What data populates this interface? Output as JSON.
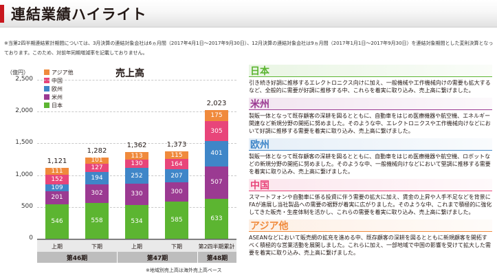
{
  "page": {
    "title": "連結業績ハイライト",
    "note": "※当第2四半期連結累計期間については、3月決算の連結対象会社は6ヵ月間（2017年4月1日〜2017年9月30日）、12月決算の連結対象会社は9ヵ月間（2017年1月1日〜2017年9月30日）を連結対象期間とした変則決算となっております。このため、対前年同期増減率を記載しておりません。"
  },
  "chart": {
    "unit_label": "（億円）",
    "chart_title": "売上高",
    "footnote": "※地域別売上高は海外売上高ベース",
    "legend": [
      {
        "name": "アジア他",
        "color": "#f08a3c"
      },
      {
        "name": "中国",
        "color": "#e8457a"
      },
      {
        "name": "欧州",
        "color": "#3f86c8"
      },
      {
        "name": "米州",
        "color": "#9b3a92"
      },
      {
        "name": "日本",
        "color": "#5cb531"
      }
    ],
    "periods": [
      "第46期",
      "第47期",
      "第48期"
    ]
  },
  "chart_data": {
    "type": "bar",
    "stacked": true,
    "title": "売上高",
    "ylabel": "（億円）",
    "ylim": [
      0,
      2500
    ],
    "yticks": [
      "0",
      "500",
      "1,000",
      "1,500",
      "2,000",
      "2,500"
    ],
    "grid": true,
    "legend_position": "top-left",
    "categories": [
      "上期",
      "下期",
      "上期",
      "下期",
      "第2四半期累計"
    ],
    "category_groups": [
      {
        "label": "第46期",
        "span": 2
      },
      {
        "label": "第47期",
        "span": 2
      },
      {
        "label": "第48期",
        "span": 1
      }
    ],
    "totals": [
      "1,121",
      "1,282",
      "1,362",
      "1,373",
      "2,023"
    ],
    "series": [
      {
        "name": "日本",
        "color": "#5cb531",
        "values": [
          546,
          558,
          534,
          585,
          633
        ]
      },
      {
        "name": "米州",
        "color": "#9b3a92",
        "values": [
          201,
          302,
          330,
          300,
          507
        ]
      },
      {
        "name": "欧州",
        "color": "#3f86c8",
        "values": [
          109,
          194,
          252,
          207,
          401
        ]
      },
      {
        "name": "中国",
        "color": "#e8457a",
        "values": [
          152,
          127,
          130,
          164,
          305
        ]
      },
      {
        "name": "アジア他",
        "color": "#f08a3c",
        "values": [
          111,
          101,
          113,
          115,
          175
        ]
      }
    ]
  },
  "regions": [
    {
      "name": "日本",
      "color": "#5cb531",
      "text": "引き続き好調に推移するエレクトロニクス向けに加え、一般機械や工作機械向けの需要も拡大するなど、全般的に需要が好調に推移する中、これらを着実に取り込み、売上高に繋げました。"
    },
    {
      "name": "米州",
      "color": "#9b3a92",
      "text": "製販一体となって既存顧客の深耕を図るとともに、自動車をはじめ医療機器や航空機、エネルギー関連など新規分野の開拓に努めました。そのような中、エレクトロニクスや工作機械向けなどにおいて好調に推移する需要を着実に取り込み、売上高に繋げました。"
    },
    {
      "name": "欧州",
      "color": "#3f86c8",
      "text": "製販一体となって既存顧客の深耕を図るとともに、自動車をはじめ医療機器や航空機、ロボットなどの新規分野の開拓に努めました。そのような中、一般機械向けなどにおいて堅調に推移する需要を着実に取り込み、売上高に繋げました。"
    },
    {
      "name": "中国",
      "color": "#e8457a",
      "text": "スマートフォンや自動車に係る投資に伴う需要の拡大に加え、賃金の上昇や人手不足などを背景にFAが進展し当社製品への需要の裾野が着実に広がりました。そのような中、これまで積極的に強化してきた販売・生産体制を活かし、これらの需要を着実に取り込み、売上高に繋げました。"
    },
    {
      "name": "アジア他",
      "color": "#f08a3c",
      "text": "ASEANなどにおいて販売網の拡充を進める中、既存顧客の深耕を図るとともに新規顧客を開拓すべく積極的な営業活動を展開しました。これらに加え、一部地域で中国の影響を受けて拡大した需要を着実に取り込み、売上高に繋げました。"
    }
  ]
}
